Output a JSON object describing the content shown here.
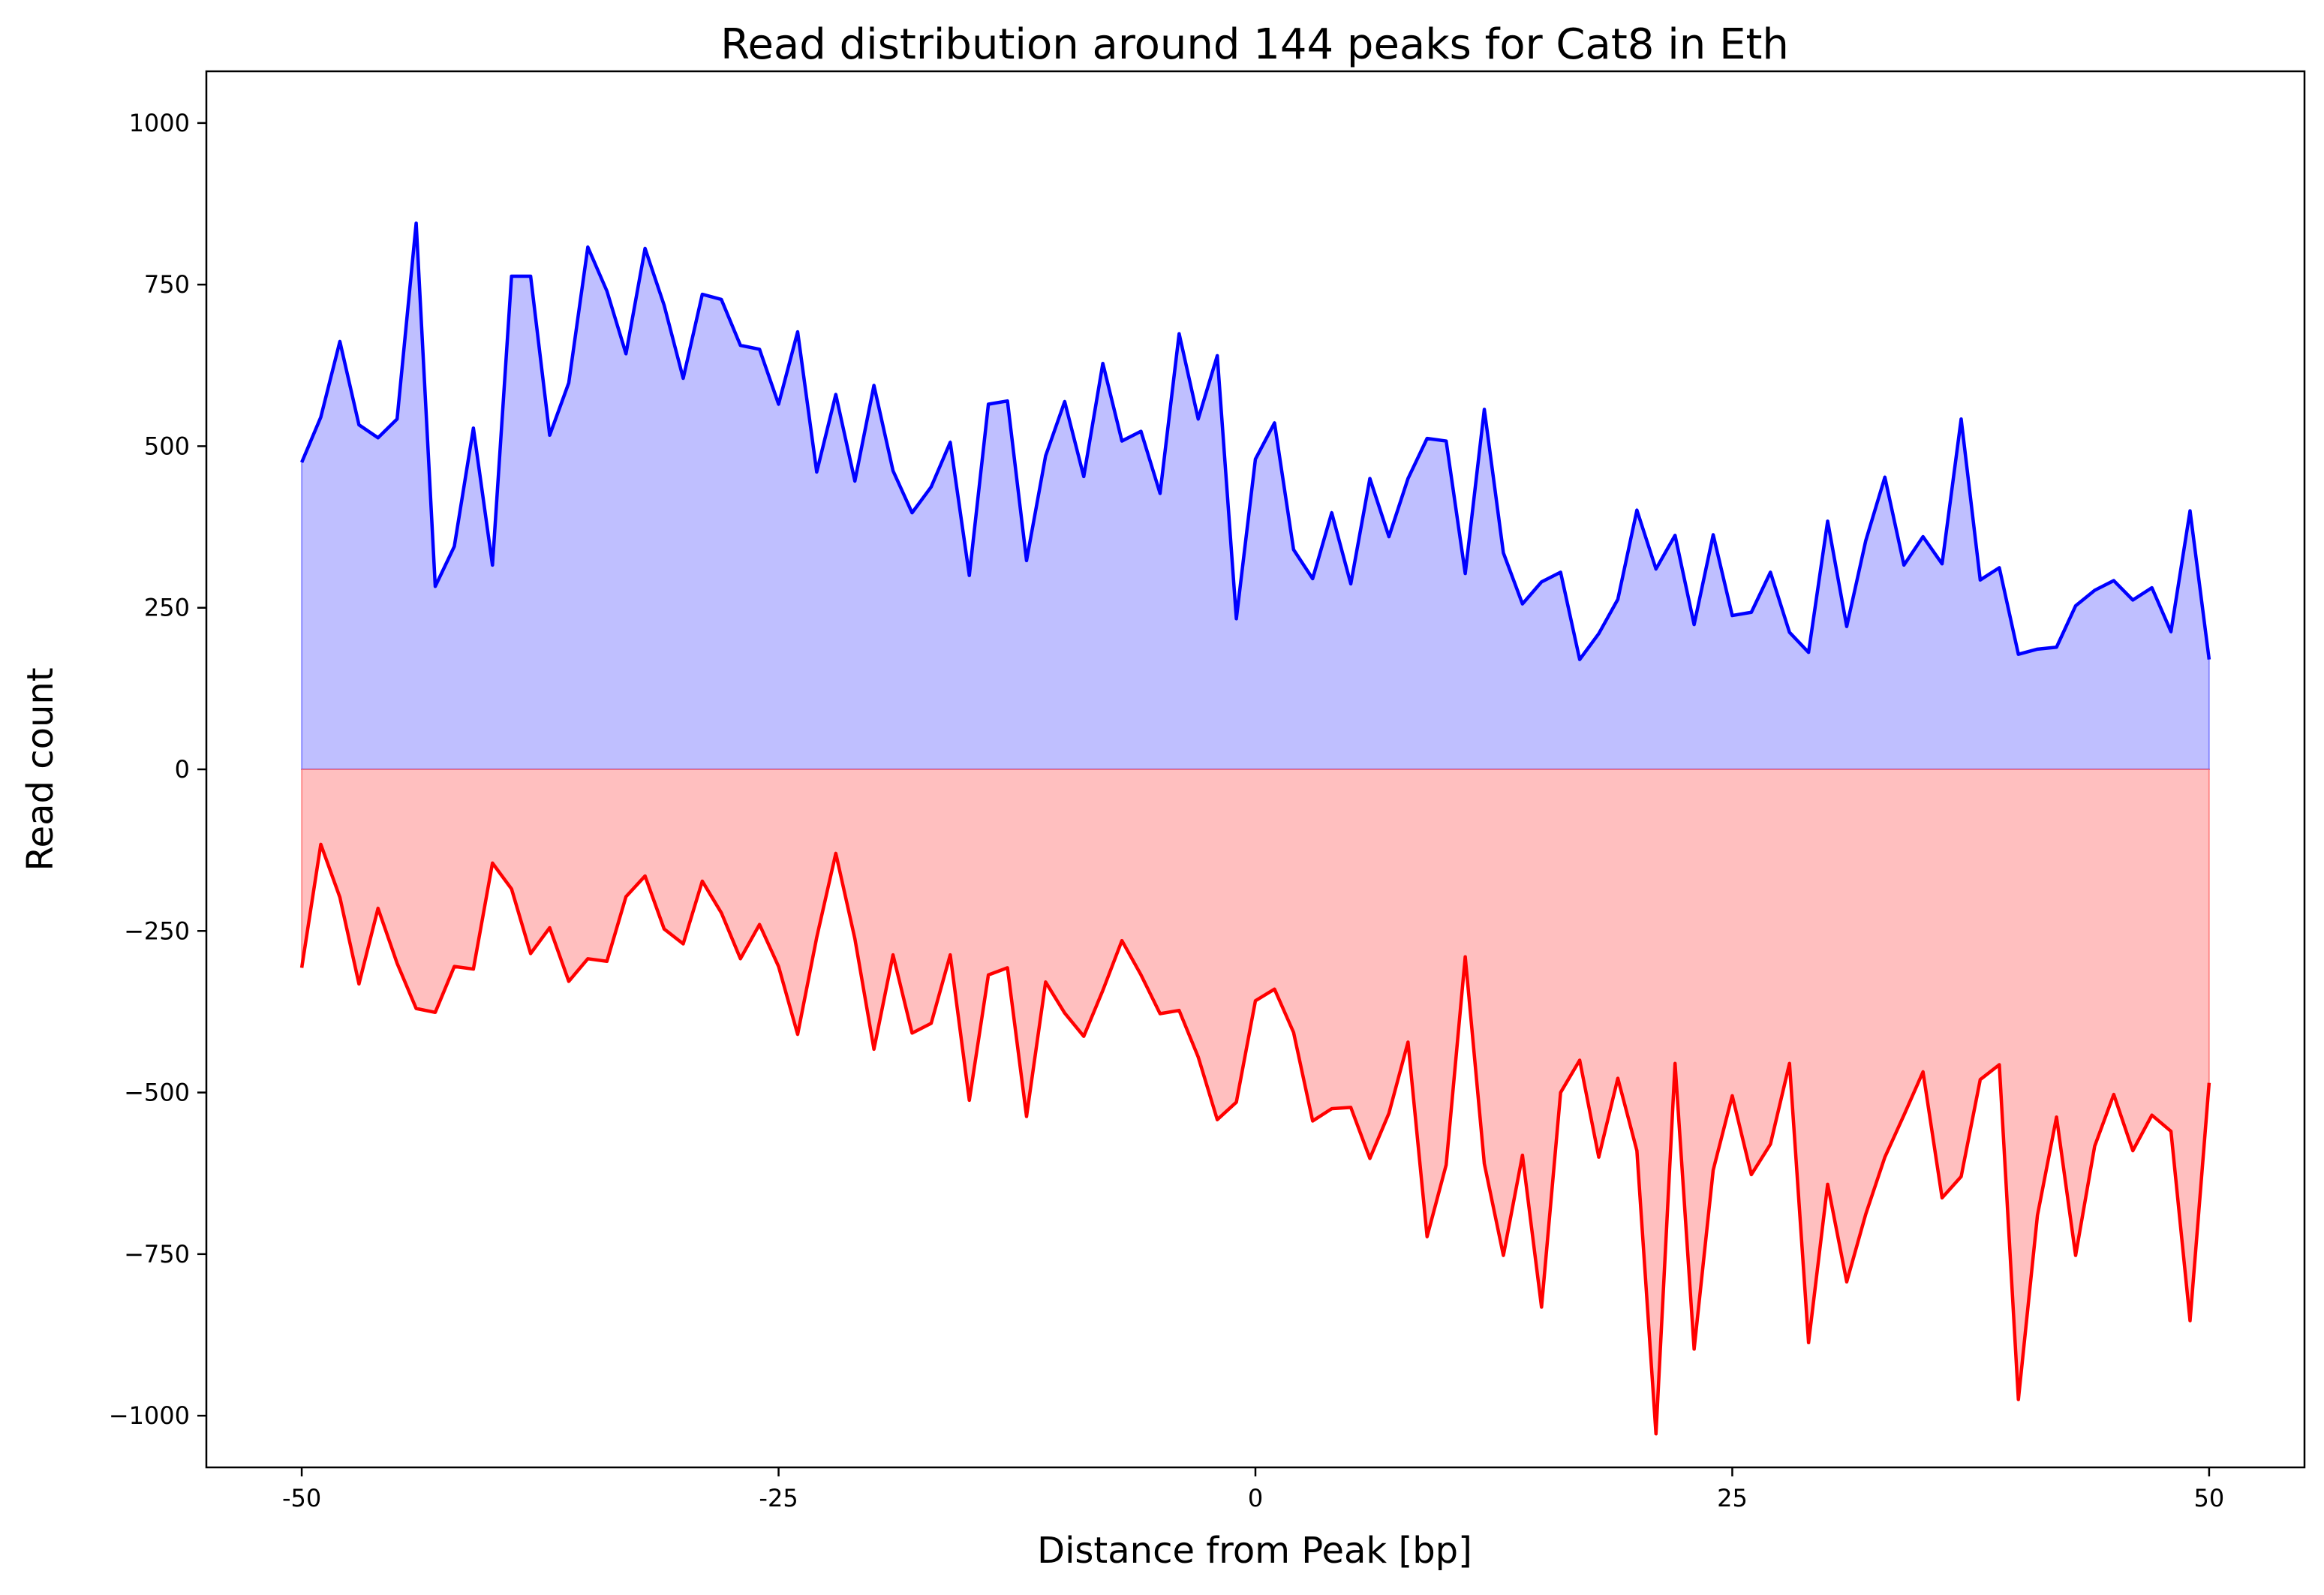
{
  "chart_data": {
    "type": "area",
    "title": "Read distribution around 144 peaks for Cat8 in Eth",
    "xlabel": "Distance from Peak [bp]",
    "ylabel": "Read count",
    "xlim": [
      -55,
      55
    ],
    "ylim": [
      -1080,
      1080
    ],
    "xticks": [
      -50,
      -25,
      0,
      25,
      50
    ],
    "xtick_labels": [
      "-50",
      "-25",
      "0",
      "25",
      "50"
    ],
    "yticks": [
      1000,
      750,
      500,
      250,
      0,
      -250,
      -500,
      -750,
      -1000
    ],
    "ytick_labels": [
      "1000",
      "750",
      "500",
      "250",
      "0",
      "−250",
      "−500",
      "−750",
      "−1000"
    ],
    "grid": false,
    "x_start": -50,
    "x_step": 1,
    "series": [
      {
        "color": "#0000ff",
        "fill": "#bfbfff",
        "values": [
          475,
          545,
          662,
          533,
          513,
          542,
          845,
          283,
          345,
          528,
          316,
          763,
          763,
          517,
          598,
          808,
          740,
          643,
          806,
          718,
          605,
          735,
          727,
          656,
          650,
          565,
          677,
          460,
          580,
          446,
          594,
          462,
          397,
          437,
          506,
          300,
          565,
          570,
          323,
          485,
          569,
          453,
          628,
          508,
          523,
          427,
          674,
          542,
          640,
          233,
          480,
          536,
          340,
          295,
          397,
          287,
          450,
          360,
          450,
          512,
          508,
          303,
          557,
          335,
          256,
          290,
          305,
          170,
          210,
          263,
          401,
          310,
          362,
          224,
          363,
          238,
          243,
          305,
          212,
          181,
          384,
          221,
          354,
          452,
          316,
          360,
          318,
          542,
          293,
          312,
          178,
          186,
          189,
          253,
          277,
          292,
          262,
          281,
          213,
          400,
          170
        ]
      },
      {
        "color": "#ff0000",
        "fill": "#ffbfbf",
        "values": [
          -307,
          -116,
          -198,
          -332,
          -215,
          -300,
          -370,
          -376,
          -305,
          -309,
          -145,
          -185,
          -285,
          -245,
          -328,
          -293,
          -297,
          -197,
          -165,
          -247,
          -270,
          -173,
          -222,
          -293,
          -240,
          -305,
          -410,
          -260,
          -130,
          -262,
          -433,
          -287,
          -408,
          -393,
          -287,
          -512,
          -318,
          -307,
          -537,
          -329,
          -377,
          -413,
          -342,
          -265,
          -318,
          -378,
          -373,
          -445,
          -542,
          -515,
          -358,
          -340,
          -407,
          -544,
          -525,
          -523,
          -602,
          -532,
          -422,
          -723,
          -612,
          -290,
          -610,
          -752,
          -597,
          -832,
          -500,
          -450,
          -600,
          -478,
          -590,
          -1028,
          -455,
          -897,
          -620,
          -505,
          -627,
          -580,
          -455,
          -887,
          -642,
          -793,
          -688,
          -600,
          -535,
          -468,
          -663,
          -630,
          -480,
          -457,
          -975,
          -690,
          -538,
          -752,
          -583,
          -503,
          -590,
          -535,
          -560,
          -853,
          -485
        ]
      }
    ]
  }
}
